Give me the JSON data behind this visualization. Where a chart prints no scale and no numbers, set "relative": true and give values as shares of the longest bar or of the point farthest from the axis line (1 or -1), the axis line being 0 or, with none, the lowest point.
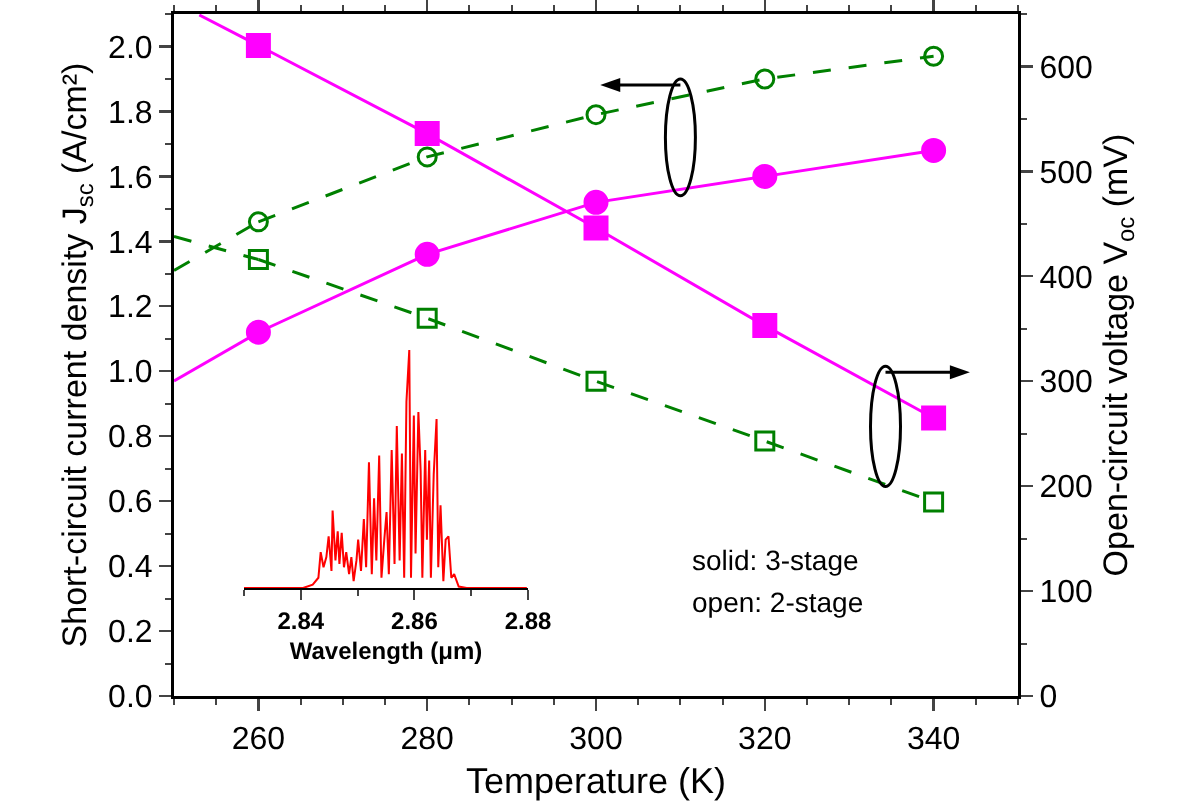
{
  "chart_data": [
    {
      "type": "line",
      "xlabel": "Temperature (K)",
      "ylabel": "Short-circuit current density J$_{sc}$ (A/cm²)",
      "y2label": "Open-circuit voltage V$_{oc}$ (mV)",
      "x": [
        260,
        280,
        300,
        320,
        340
      ],
      "xlim": [
        250,
        350
      ],
      "xticks": [
        260,
        280,
        300,
        320,
        340
      ],
      "ylim": [
        0,
        2.1
      ],
      "yticks": [
        {
          "value": 0,
          "label": "0.0"
        },
        {
          "value": 0.2,
          "label": "0.2"
        },
        {
          "value": 0.4,
          "label": "0.4"
        },
        {
          "value": 0.6,
          "label": "0.6"
        },
        {
          "value": 0.8,
          "label": "0.8"
        },
        {
          "value": 1.0,
          "label": "1.0"
        },
        {
          "value": 1.2,
          "label": "1.2"
        },
        {
          "value": 1.4,
          "label": "1.4"
        },
        {
          "value": 1.6,
          "label": "1.6"
        },
        {
          "value": 1.8,
          "label": "1.8"
        },
        {
          "value": 2.0,
          "label": "2.0"
        }
      ],
      "y2lim": [
        0,
        650
      ],
      "y2ticks": [
        0,
        100,
        200,
        300,
        400,
        500,
        600
      ],
      "grid": false,
      "series": [
        {
          "color": "#ff00ff",
          "marker": "circle",
          "line_style": "solid",
          "values": [
            1.12,
            1.36,
            1.52,
            1.6,
            1.68
          ]
        },
        {
          "color": "#008000",
          "marker": "circle",
          "line_style": "dashed",
          "values": [
            1.46,
            1.66,
            1.79,
            1.9,
            1.97
          ]
        },
        {
          "color": "#ff00ff",
          "marker": "square",
          "line_style": "solid",
          "axis": "y2",
          "values": [
            620,
            536,
            446,
            353,
            265
          ]
        },
        {
          "color": "#008000",
          "marker": "square",
          "line_style": "dashed",
          "axis": "y2",
          "values": [
            416,
            360,
            300,
            243,
            185
          ]
        },
        {
          "color": "#ff00ff",
          "marker": "none",
          "line_style": "solid",
          "x": [
            250,
            260
          ],
          "values": [
            0.97,
            1.12
          ]
        },
        {
          "color": "#008000",
          "marker": "none",
          "line_style": "dashed",
          "x": [
            250,
            260
          ],
          "values": [
            1.31,
            1.46
          ]
        },
        {
          "color": "#ff00ff",
          "marker": "none",
          "line_style": "solid",
          "axis": "y2",
          "x": [
            253,
            260
          ],
          "values": [
            649,
            620
          ]
        },
        {
          "color": "#008000",
          "marker": "none",
          "line_style": "dashed",
          "axis": "y2",
          "x": [
            250,
            260
          ],
          "values": [
            438,
            416
          ]
        }
      ],
      "annotations": [
        "solid: 3-stage",
        "open: 2-stage"
      ]
    },
    {
      "type": "line",
      "relative": true,
      "xlabel": "Wavelength (μm)",
      "xlim": [
        2.83,
        2.88
      ],
      "xticks": [
        2.84,
        2.86,
        2.88
      ],
      "tick_labels": "x",
      "x": [
        2.83,
        2.8404,
        2.8421,
        2.8431,
        2.8435,
        2.844,
        2.8445,
        2.8449,
        2.8454,
        2.8456,
        2.8461,
        2.8465,
        2.8468,
        2.8472,
        2.8476,
        2.848,
        2.8485,
        2.8489,
        2.8493,
        2.8498,
        2.8501,
        2.8506,
        2.8511,
        2.8515,
        2.852,
        2.8525,
        2.8529,
        2.8533,
        2.8538,
        2.8542,
        2.8547,
        2.8551,
        2.8555,
        2.856,
        2.8565,
        2.8569,
        2.8574,
        2.8578,
        2.8582,
        2.8586,
        2.8591,
        2.8594,
        2.8599,
        2.8602,
        2.8607,
        2.8611,
        2.8614,
        2.8619,
        2.8622,
        2.8626,
        2.8629,
        2.8634,
        2.8639,
        2.8642,
        2.8646,
        2.8651,
        2.8655,
        2.866,
        2.8665,
        2.867,
        2.8678,
        2.8692,
        2.8798
      ],
      "series": [
        {
          "color": "#ff0000",
          "values": [
            0,
            0,
            0.014,
            0.043,
            0.151,
            0.087,
            0.13,
            0.217,
            0.072,
            0.325,
            0.116,
            0.238,
            0.101,
            0.232,
            0.087,
            0.151,
            0.058,
            0.13,
            0.029,
            0.116,
            0.203,
            0.072,
            0.29,
            0.087,
            0.528,
            0.058,
            0.377,
            0.116,
            0.557,
            0.043,
            0.203,
            0.319,
            0.058,
            0.58,
            0.101,
            0.681,
            0.116,
            0.565,
            0.043,
            0.783,
            1,
            0.043,
            0.725,
            0.145,
            0.739,
            0.493,
            0.043,
            0.58,
            0.203,
            0.536,
            0.043,
            0.478,
            0.71,
            0.087,
            0.348,
            0.029,
            0.203,
            0.217,
            0.043,
            0.058,
            0.006,
            0,
            0
          ]
        }
      ]
    }
  ]
}
